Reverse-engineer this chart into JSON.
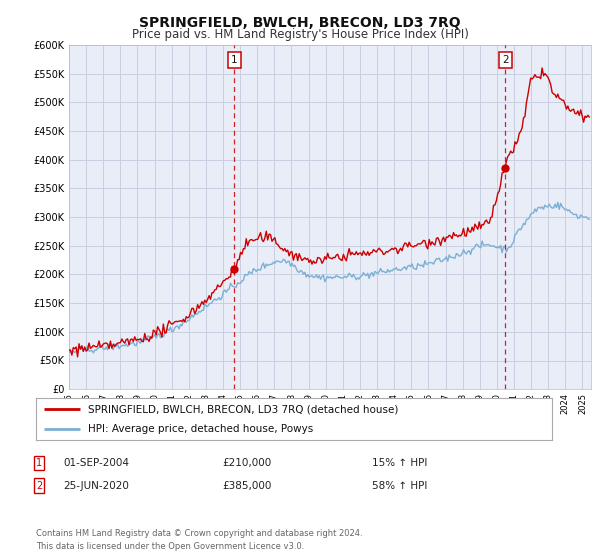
{
  "title": "SPRINGFIELD, BWLCH, BRECON, LD3 7RQ",
  "subtitle": "Price paid vs. HM Land Registry's House Price Index (HPI)",
  "ylim": [
    0,
    600000
  ],
  "xlim_start": 1995.0,
  "xlim_end": 2025.5,
  "yticks": [
    0,
    50000,
    100000,
    150000,
    200000,
    250000,
    300000,
    350000,
    400000,
    450000,
    500000,
    550000,
    600000
  ],
  "ytick_labels": [
    "£0",
    "£50K",
    "£100K",
    "£150K",
    "£200K",
    "£250K",
    "£300K",
    "£350K",
    "£400K",
    "£450K",
    "£500K",
    "£550K",
    "£600K"
  ],
  "xticks": [
    1995,
    1996,
    1997,
    1998,
    1999,
    2000,
    2001,
    2002,
    2003,
    2004,
    2005,
    2006,
    2007,
    2008,
    2009,
    2010,
    2011,
    2012,
    2013,
    2014,
    2015,
    2016,
    2017,
    2018,
    2019,
    2020,
    2021,
    2022,
    2023,
    2024,
    2025
  ],
  "background_color": "#ffffff",
  "plot_bg_color": "#e8edf8",
  "grid_color": "#c8cfe0",
  "hpi_color": "#7bafd4",
  "price_color": "#cc0000",
  "marker1_x": 2004.667,
  "marker1_y": 210000,
  "marker2_x": 2020.5,
  "marker2_y": 385000,
  "vline1_x": 2004.667,
  "vline2_x": 2020.5,
  "legend_label1": "SPRINGFIELD, BWLCH, BRECON, LD3 7RQ (detached house)",
  "legend_label2": "HPI: Average price, detached house, Powys",
  "note1_num": "1",
  "note1_date": "01-SEP-2004",
  "note1_price": "£210,000",
  "note1_hpi": "15% ↑ HPI",
  "note2_num": "2",
  "note2_date": "25-JUN-2020",
  "note2_price": "£385,000",
  "note2_hpi": "58% ↑ HPI",
  "footer": "Contains HM Land Registry data © Crown copyright and database right 2024.\nThis data is licensed under the Open Government Licence v3.0.",
  "title_fontsize": 10,
  "subtitle_fontsize": 8.5
}
